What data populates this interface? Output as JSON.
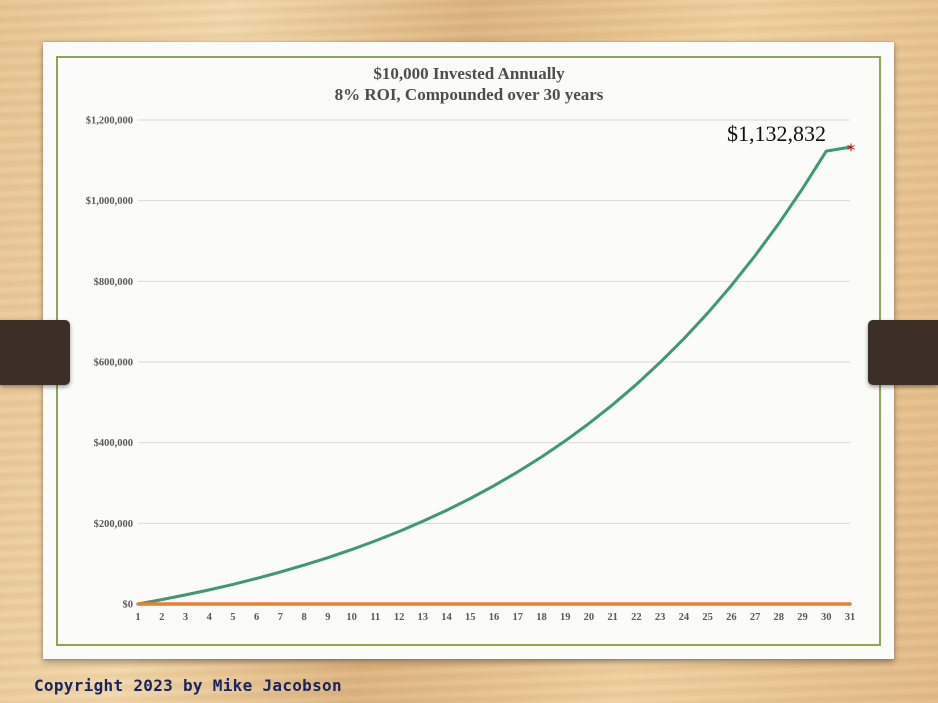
{
  "chart_data": {
    "type": "line",
    "title": "$10,000 Invested Annually",
    "subtitle": "8% ROI, Compounded over 30 years",
    "xlabel": "",
    "ylabel": "",
    "categories": [
      "1",
      "2",
      "3",
      "4",
      "5",
      "6",
      "7",
      "8",
      "9",
      "10",
      "11",
      "12",
      "13",
      "14",
      "15",
      "16",
      "17",
      "18",
      "19",
      "20",
      "21",
      "22",
      "23",
      "24",
      "25",
      "26",
      "27",
      "28",
      "29",
      "30",
      "31"
    ],
    "ylim": [
      0,
      1200000
    ],
    "y_ticks": [
      "$0",
      "$200,000",
      "$400,000",
      "$600,000",
      "$800,000",
      "$1,000,000",
      "$1,200,000"
    ],
    "series": [
      {
        "color": "#3c9a6e",
        "values": [
          0,
          10800,
          22464,
          35061,
          48666,
          63359,
          79228,
          96367,
          114876,
          134866,
          156455,
          179772,
          204953,
          232149,
          261521,
          293243,
          327502,
          364502,
          404463,
          447620,
          494229,
          544568,
          598933,
          657648,
          721059,
          789544,
          863508,
          943388,
          1029659,
          1122832,
          1132832
        ]
      },
      {
        "color": "#ed7d31",
        "values": [
          0,
          0,
          0,
          0,
          0,
          0,
          0,
          0,
          0,
          0,
          0,
          0,
          0,
          0,
          0,
          0,
          0,
          0,
          0,
          0,
          0,
          0,
          0,
          0,
          0,
          0,
          0,
          0,
          0,
          0,
          0
        ]
      }
    ],
    "annotation": {
      "label": "$1,132,832",
      "marker": "*",
      "marker_color": "#c00000",
      "category": "31"
    },
    "grid": true,
    "legend": "none"
  },
  "footer": {
    "copyright": "Copyright 2023 by Mike Jacobson"
  }
}
